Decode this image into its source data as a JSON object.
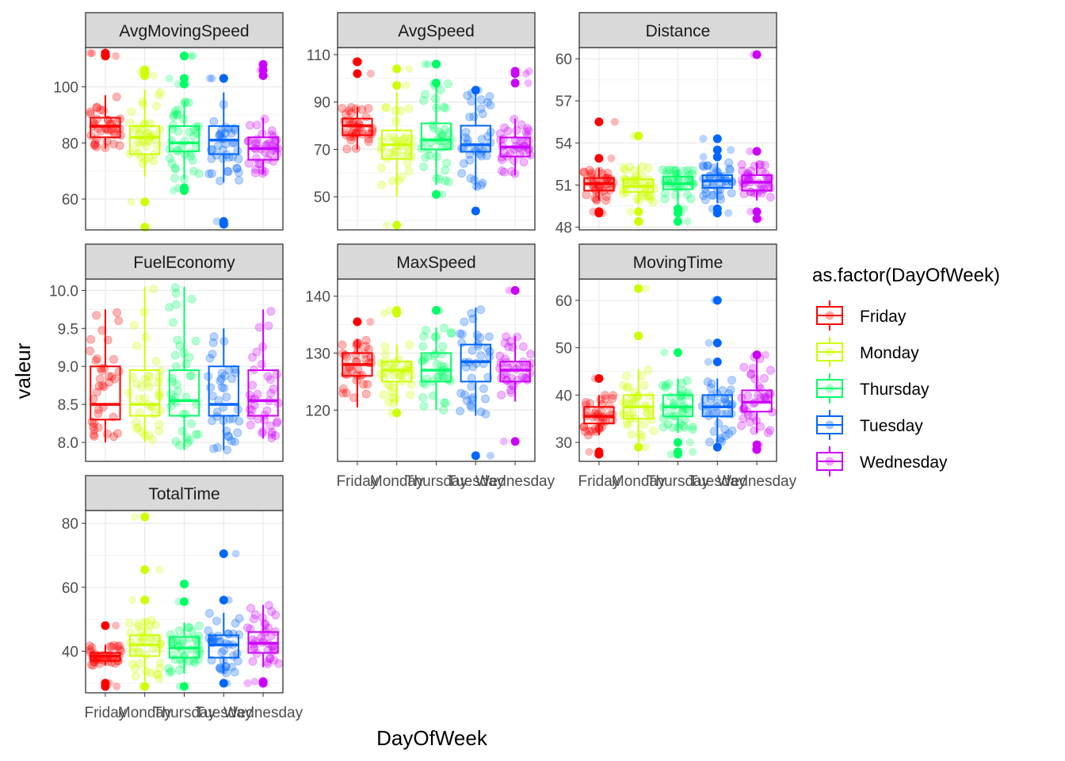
{
  "chart_data": {
    "type": "box",
    "overlay": "jittered points",
    "layout": "facet_wrap, 3 columns, free y scales",
    "xlabel": "DayOfWeek",
    "ylabel": "valeur",
    "grid": true,
    "legend": {
      "title": "as.factor(DayOfWeek)",
      "placement": "right",
      "entries": [
        "Friday",
        "Monday",
        "Thursday",
        "Tuesday",
        "Wednesday"
      ]
    },
    "categories": [
      "Friday",
      "Monday",
      "Thursday",
      "Tuesday",
      "Wednesday"
    ],
    "colors": {
      "Friday": "#ff0000",
      "Monday": "#ccff00",
      "Thursday": "#00ff66",
      "Tuesday": "#0066ff",
      "Wednesday": "#cc00ff"
    },
    "panels": [
      {
        "name": "AvgMovingSpeed",
        "ylim": [
          49,
          114
        ],
        "yticks": [
          60,
          80,
          100
        ],
        "boxes": [
          {
            "q1": 82,
            "median": 86,
            "q3": 89,
            "lo": 78,
            "hi": 97,
            "out": [
              112,
              112,
              111,
              111
            ]
          },
          {
            "q1": 76,
            "median": 82,
            "q3": 86,
            "lo": 68,
            "hi": 99,
            "out": [
              106,
              105,
              104,
              59,
              50
            ]
          },
          {
            "q1": 77,
            "median": 80,
            "q3": 86,
            "lo": 67,
            "hi": 95,
            "out": [
              111,
              111,
              103,
              101,
              64,
              63
            ]
          },
          {
            "q1": 76,
            "median": 81,
            "q3": 86,
            "lo": 66,
            "hi": 98,
            "out": [
              103,
              103,
              52,
              51
            ]
          },
          {
            "q1": 74,
            "median": 78,
            "q3": 82,
            "lo": 69,
            "hi": 89,
            "out": [
              108,
              106,
              104
            ]
          }
        ]
      },
      {
        "name": "AvgSpeed",
        "ylim": [
          36,
          113
        ],
        "yticks": [
          50,
          70,
          90,
          110
        ],
        "boxes": [
          {
            "q1": 76,
            "median": 80,
            "q3": 83,
            "lo": 70,
            "hi": 88,
            "out": [
              107,
              107,
              102
            ]
          },
          {
            "q1": 66,
            "median": 72,
            "q3": 78,
            "lo": 50,
            "hi": 94,
            "out": [
              104,
              97,
              38
            ]
          },
          {
            "q1": 70,
            "median": 74,
            "q3": 81,
            "lo": 55,
            "hi": 98,
            "out": [
              106,
              106,
              98,
              51
            ]
          },
          {
            "q1": 69,
            "median": 72,
            "q3": 80,
            "lo": 53,
            "hi": 95,
            "out": [
              95,
              44
            ]
          },
          {
            "q1": 67,
            "median": 71,
            "q3": 75,
            "lo": 59,
            "hi": 83,
            "out": [
              103,
              102,
              98
            ]
          }
        ]
      },
      {
        "name": "Distance",
        "ylim": [
          47.8,
          60.8
        ],
        "yticks": [
          48,
          51,
          54,
          57,
          60
        ],
        "boxes": [
          {
            "q1": 50.6,
            "median": 51.1,
            "q3": 51.5,
            "lo": 49.9,
            "hi": 52.2,
            "out": [
              55.5,
              52.9,
              49.1,
              49.0
            ]
          },
          {
            "q1": 50.5,
            "median": 50.9,
            "q3": 51.4,
            "lo": 49.7,
            "hi": 52.4,
            "out": [
              54.5,
              49.1,
              48.4
            ]
          },
          {
            "q1": 50.7,
            "median": 51.1,
            "q3": 51.6,
            "lo": 49.6,
            "hi": 52.1,
            "out": [
              49.3,
              49.0,
              48.4
            ]
          },
          {
            "q1": 50.8,
            "median": 51.3,
            "q3": 51.7,
            "lo": 49.7,
            "hi": 52.6,
            "out": [
              54.3,
              53.5,
              53.0,
              49.3,
              49.0
            ]
          },
          {
            "q1": 50.6,
            "median": 51.2,
            "q3": 51.7,
            "lo": 49.9,
            "hi": 52.6,
            "out": [
              60.3,
              53.4,
              49.1,
              48.6
            ]
          }
        ]
      },
      {
        "name": "FuelEconomy",
        "ylim": [
          7.75,
          10.15
        ],
        "yticks": [
          8.0,
          8.5,
          9.0,
          9.5,
          10.0
        ],
        "yticklabels": [
          "8.0",
          "8.5",
          "9.0",
          "9.5",
          "10.0"
        ],
        "boxes": [
          {
            "q1": 8.3,
            "median": 8.5,
            "q3": 9.0,
            "lo": 8.0,
            "hi": 9.75,
            "out": []
          },
          {
            "q1": 8.35,
            "median": 8.5,
            "q3": 8.95,
            "lo": 8.0,
            "hi": 10.05,
            "out": []
          },
          {
            "q1": 8.35,
            "median": 8.55,
            "q3": 8.95,
            "lo": 7.9,
            "hi": 10.05,
            "out": []
          },
          {
            "q1": 8.35,
            "median": 8.5,
            "q3": 9.0,
            "lo": 7.9,
            "hi": 9.5,
            "out": []
          },
          {
            "q1": 8.35,
            "median": 8.55,
            "q3": 8.95,
            "lo": 8.05,
            "hi": 9.75,
            "out": []
          }
        ]
      },
      {
        "name": "MaxSpeed",
        "ylim": [
          111,
          143
        ],
        "yticks": [
          120,
          130,
          140
        ],
        "boxes": [
          {
            "q1": 126,
            "median": 128,
            "q3": 130,
            "lo": 120.5,
            "hi": 132.5,
            "out": [
              135.5
            ]
          },
          {
            "q1": 125,
            "median": 127,
            "q3": 128.5,
            "lo": 121,
            "hi": 131.5,
            "out": [
              137.5,
              137,
              119.5
            ]
          },
          {
            "q1": 125,
            "median": 127,
            "q3": 130,
            "lo": 120,
            "hi": 134.5,
            "out": [
              137.5
            ]
          },
          {
            "q1": 125,
            "median": 128.5,
            "q3": 131.5,
            "lo": 119,
            "hi": 138,
            "out": [
              112
            ]
          },
          {
            "q1": 125,
            "median": 127,
            "q3": 128.5,
            "lo": 121.5,
            "hi": 133,
            "out": [
              141,
              114.5
            ]
          }
        ]
      },
      {
        "name": "MovingTime",
        "ylim": [
          26,
          64.5
        ],
        "yticks": [
          30,
          40,
          50,
          60
        ],
        "boxes": [
          {
            "q1": 34,
            "median": 35.5,
            "q3": 37.5,
            "lo": 31.5,
            "hi": 40,
            "out": [
              43.5,
              28,
              27.5
            ]
          },
          {
            "q1": 35,
            "median": 37.5,
            "q3": 40,
            "lo": 30,
            "hi": 45.5,
            "out": [
              62.5,
              52.5,
              29
            ]
          },
          {
            "q1": 35.5,
            "median": 37.5,
            "q3": 40,
            "lo": 32,
            "hi": 43.5,
            "out": [
              49,
              30,
              28,
              27.5
            ]
          },
          {
            "q1": 35.5,
            "median": 37.5,
            "q3": 40,
            "lo": 30,
            "hi": 43.5,
            "out": [
              60,
              51,
              47,
              29
            ]
          },
          {
            "q1": 36.5,
            "median": 38.5,
            "q3": 41,
            "lo": 32,
            "hi": 48.5,
            "out": [
              48.5,
              29.5,
              28.5
            ]
          }
        ]
      },
      {
        "name": "TotalTime",
        "ylim": [
          27,
          84
        ],
        "yticks": [
          40,
          60,
          80
        ],
        "boxes": [
          {
            "q1": 37,
            "median": 38.5,
            "q3": 39.5,
            "lo": 35.5,
            "hi": 42,
            "out": [
              48,
              30,
              29
            ]
          },
          {
            "q1": 38.5,
            "median": 42,
            "q3": 45,
            "lo": 30.5,
            "hi": 50,
            "out": [
              82,
              65.5,
              56,
              29
            ]
          },
          {
            "q1": 38,
            "median": 41,
            "q3": 44.5,
            "lo": 33,
            "hi": 49,
            "out": [
              61,
              55.5,
              29
            ]
          },
          {
            "q1": 38,
            "median": 42,
            "q3": 45,
            "lo": 33,
            "hi": 52,
            "out": [
              70.5,
              56,
              30
            ]
          },
          {
            "q1": 39.5,
            "median": 42.5,
            "q3": 46,
            "lo": 35,
            "hi": 54.5,
            "out": [
              30.5,
              30
            ]
          }
        ]
      }
    ]
  }
}
